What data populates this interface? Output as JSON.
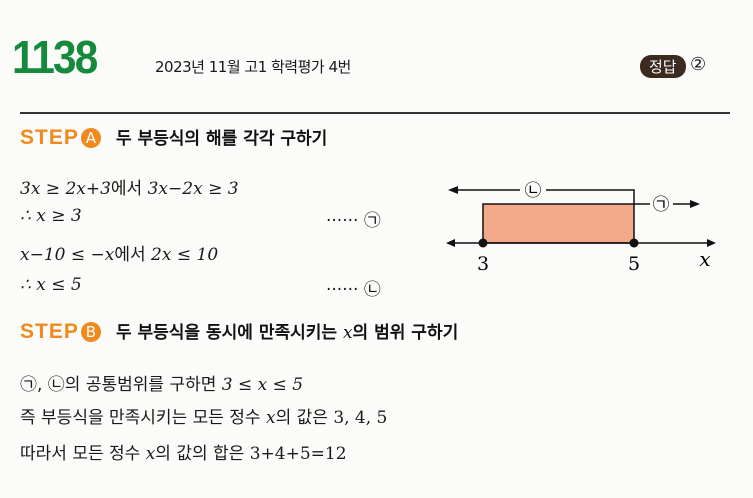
{
  "header": {
    "number": "1138",
    "source": "2023년 11월 고1 학력평가 4번",
    "answer_badge": "정답",
    "answer": "②"
  },
  "stepA": {
    "label": "STEP",
    "letter": "A",
    "title": "두 부등식의 해를 각각 구하기",
    "l1a": "3x ≥ 2x+3",
    "l1b": "에서 ",
    "l1c": "3x−2x ≥ 3",
    "l2": "∴ x ≥ 3",
    "l2tag": "······ ㉠",
    "l3a": "x−10 ≤ −x",
    "l3b": "에서 ",
    "l3c": "2x ≤ 10",
    "l4": "∴ x ≤ 5",
    "l4tag": "······ ㉡"
  },
  "diagram": {
    "label_upper": "㉡",
    "label_lower": "㉠",
    "tick_left": "3",
    "tick_right": "5",
    "axis": "x",
    "range": [
      3,
      5
    ],
    "fill": "#f4a98a"
  },
  "stepB": {
    "label": "STEP",
    "letter": "B",
    "title_a": "두 부등식을 동시에 만족시키는 ",
    "title_x": "x",
    "title_b": "의 범위 구하기",
    "l1a": "㉠, ㉡의 공통범위를 구하면 ",
    "l1b": "3 ≤ x ≤ 5",
    "l2a": "즉 부등식을 만족시키는 모든 정수 ",
    "l2x": "x",
    "l2b": "의 값은 ",
    "l2c": "3, 4, 5",
    "l3a": "따라서 모든 정수 ",
    "l3x": "x",
    "l3b": "의 값의 합은 ",
    "l3c": "3+4+5=12"
  },
  "colors": {
    "green": "#168a3c",
    "orange": "#f08a1e",
    "badge": "#3b2a1f"
  }
}
